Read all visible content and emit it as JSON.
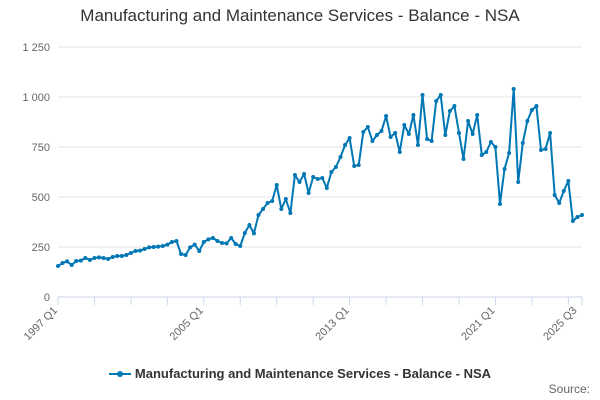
{
  "chart_data": {
    "type": "line",
    "title": "Manufacturing and Maintenance Services - Balance - NSA",
    "xlabel": "",
    "ylabel": "",
    "ylim": [
      0,
      1250
    ],
    "yticks": [
      0,
      250,
      500,
      750,
      1000,
      1250
    ],
    "ytick_labels": [
      "0",
      "250",
      "500",
      "750",
      "1 000",
      "1 250"
    ],
    "xtick_labels": [
      "1997 Q1",
      "2005 Q1",
      "2013 Q1",
      "2021 Q1",
      "2025 Q3"
    ],
    "xtick_label_indices": [
      0,
      32,
      64,
      96,
      114
    ],
    "grid": true,
    "legend": "bottom-center",
    "series": [
      {
        "name": "Manufacturing and Maintenance Services - Balance - NSA",
        "color": "#0077b5",
        "values": [
          155,
          170,
          178,
          160,
          180,
          182,
          195,
          185,
          195,
          198,
          195,
          190,
          200,
          205,
          205,
          210,
          220,
          230,
          232,
          240,
          248,
          250,
          252,
          255,
          262,
          275,
          280,
          215,
          210,
          248,
          262,
          230,
          275,
          288,
          295,
          280,
          270,
          268,
          295,
          265,
          255,
          320,
          360,
          318,
          410,
          440,
          470,
          480,
          560,
          440,
          490,
          420,
          610,
          575,
          615,
          520,
          600,
          590,
          595,
          545,
          625,
          650,
          700,
          760,
          795,
          655,
          660,
          825,
          850,
          780,
          810,
          830,
          905,
          800,
          820,
          725,
          860,
          815,
          910,
          760,
          1010,
          790,
          780,
          980,
          1010,
          810,
          930,
          955,
          820,
          690,
          880,
          815,
          910,
          710,
          725,
          775,
          750,
          465,
          640,
          720,
          1040,
          575,
          770,
          880,
          935,
          955,
          735,
          740,
          820,
          510,
          470,
          530,
          580,
          380,
          400,
          410
        ]
      }
    ]
  },
  "legend_label": "Manufacturing and Maintenance Services - Balance - NSA",
  "source_label": "Source:"
}
